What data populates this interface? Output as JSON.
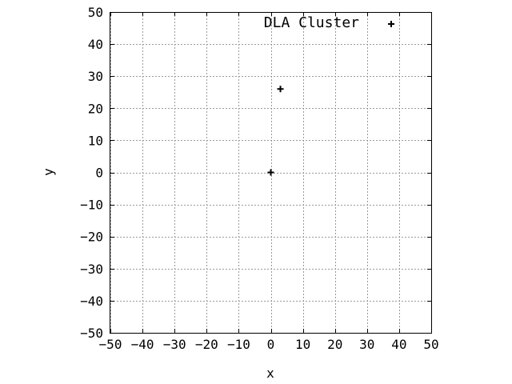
{
  "chart_data": {
    "type": "scatter",
    "xlabel": "x",
    "ylabel": "y",
    "xlim": [
      -50,
      50
    ],
    "ylim": [
      -50,
      50
    ],
    "xticks": [
      -50,
      -40,
      -30,
      -20,
      -10,
      0,
      10,
      20,
      30,
      40,
      50
    ],
    "yticks": [
      -50,
      -40,
      -30,
      -20,
      -10,
      0,
      10,
      20,
      30,
      40,
      50
    ],
    "xtick_labels": [
      "−50",
      "−40",
      "−30",
      "−20",
      "−10",
      "0",
      "10",
      "20",
      "30",
      "40",
      "50"
    ],
    "ytick_labels": [
      "−50",
      "−40",
      "−30",
      "−20",
      "−10",
      "0",
      "10",
      "20",
      "30",
      "40",
      "50"
    ],
    "grid": true,
    "legend_position": "top-right",
    "series": [
      {
        "name": "DLA Cluster",
        "marker": "plus",
        "color": "#000000",
        "points": [
          {
            "x": 0,
            "y": 0
          },
          {
            "x": 3,
            "y": 26
          }
        ]
      }
    ]
  }
}
